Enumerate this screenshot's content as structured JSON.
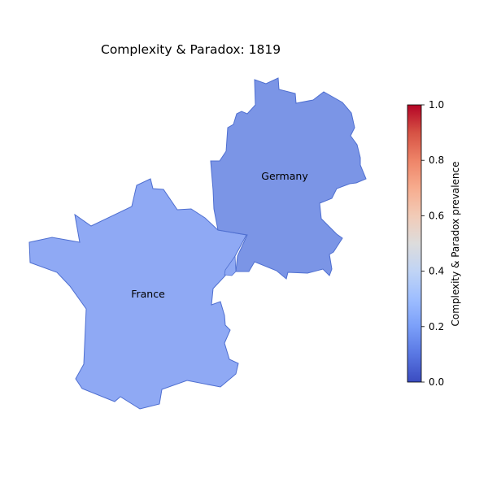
{
  "map": {
    "title": "Complexity & Paradox: 1819",
    "colorbar_label": "Complexity & Paradox prevalence",
    "colormap": "coolwarm",
    "value_range": [
      0.0,
      1.0
    ],
    "colorbar_ticks": [
      "0.0",
      "0.2",
      "0.4",
      "0.6",
      "0.8",
      "1.0"
    ],
    "regions": [
      {
        "name": "France",
        "value": 0.22,
        "fill": "#8fa9f4"
      },
      {
        "name": "Germany",
        "value": 0.15,
        "fill": "#7b95e6"
      }
    ],
    "border_color": "#4f6fd0"
  }
}
